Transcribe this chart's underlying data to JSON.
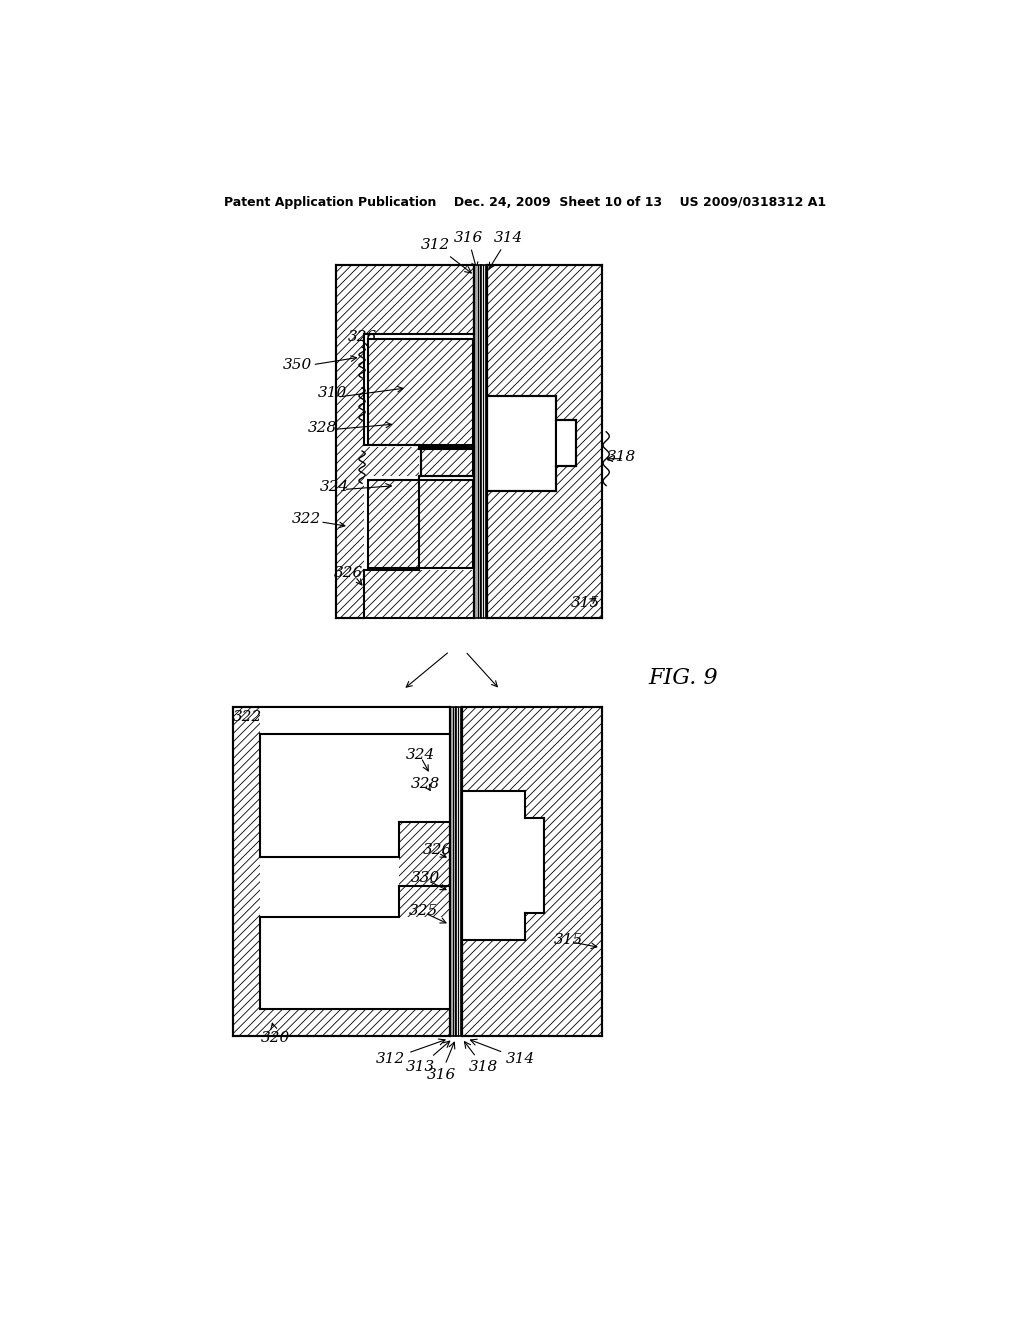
{
  "bg_color": "#ffffff",
  "header": "Patent Application Publication    Dec. 24, 2009  Sheet 10 of 13    US 2009/0318312 A1",
  "fig_label": "FIG. 9"
}
